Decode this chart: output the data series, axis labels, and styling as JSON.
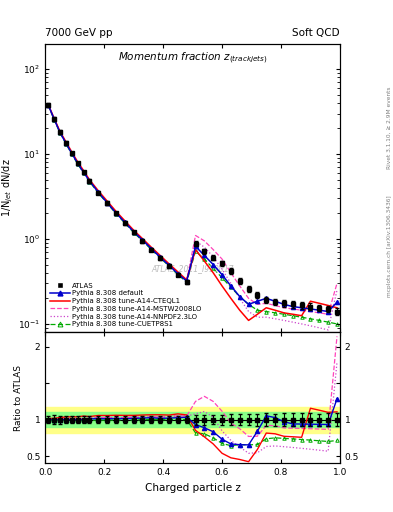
{
  "title_main": "Momentum fraction z$_{(track jets)}$",
  "header_left": "7000 GeV pp",
  "header_right": "Soft QCD",
  "ylabel_main": "1/N$_{jet}$ dN/dz",
  "ylabel_ratio": "Ratio to ATLAS",
  "xlabel": "Charged particle z",
  "watermark": "ATLAS_2011_I919017",
  "right_label": "mcplots.cern.ch [arXiv:1306.3436]",
  "right_label2": "Rivet 3.1.10, ≥ 2.9M events",
  "z_vals": [
    0.01,
    0.03,
    0.05,
    0.07,
    0.09,
    0.11,
    0.13,
    0.15,
    0.18,
    0.21,
    0.24,
    0.27,
    0.3,
    0.33,
    0.36,
    0.39,
    0.42,
    0.45,
    0.48,
    0.51,
    0.54,
    0.57,
    0.6,
    0.63,
    0.66,
    0.69,
    0.72,
    0.75,
    0.78,
    0.81,
    0.84,
    0.87,
    0.9,
    0.93,
    0.96,
    0.99
  ],
  "atlas_y": [
    38,
    26,
    18,
    13.5,
    10.2,
    7.8,
    6.1,
    4.8,
    3.5,
    2.65,
    2.0,
    1.55,
    1.2,
    0.95,
    0.75,
    0.6,
    0.48,
    0.38,
    0.31,
    0.88,
    0.72,
    0.6,
    0.52,
    0.42,
    0.32,
    0.26,
    0.22,
    0.19,
    0.18,
    0.175,
    0.17,
    0.165,
    0.16,
    0.155,
    0.15,
    0.14
  ],
  "atlas_yerr": [
    2,
    1.5,
    1.0,
    0.7,
    0.5,
    0.35,
    0.28,
    0.22,
    0.16,
    0.12,
    0.09,
    0.07,
    0.055,
    0.044,
    0.035,
    0.028,
    0.022,
    0.018,
    0.015,
    0.06,
    0.05,
    0.04,
    0.035,
    0.03,
    0.025,
    0.02,
    0.018,
    0.016,
    0.015,
    0.015,
    0.015,
    0.014,
    0.014,
    0.013,
    0.013,
    0.012
  ],
  "pythia_default_y": [
    38,
    26,
    18,
    13.5,
    10.2,
    7.8,
    6.1,
    4.85,
    3.55,
    2.68,
    2.03,
    1.57,
    1.22,
    0.97,
    0.77,
    0.61,
    0.49,
    0.39,
    0.32,
    0.82,
    0.64,
    0.5,
    0.38,
    0.28,
    0.21,
    0.17,
    0.185,
    0.2,
    0.185,
    0.17,
    0.16,
    0.155,
    0.15,
    0.145,
    0.14,
    0.18
  ],
  "pythia_cteq_y": [
    38.5,
    26.5,
    18.5,
    14,
    10.6,
    8.1,
    6.4,
    5.0,
    3.7,
    2.8,
    2.12,
    1.64,
    1.27,
    1.01,
    0.8,
    0.64,
    0.51,
    0.41,
    0.33,
    0.75,
    0.55,
    0.4,
    0.28,
    0.2,
    0.145,
    0.11,
    0.13,
    0.155,
    0.145,
    0.135,
    0.13,
    0.125,
    0.185,
    0.175,
    0.165,
    0.155
  ],
  "pythia_mstw_y": [
    38,
    26,
    18.2,
    13.7,
    10.3,
    7.9,
    6.2,
    4.9,
    3.6,
    2.72,
    2.06,
    1.59,
    1.24,
    0.98,
    0.78,
    0.62,
    0.5,
    0.4,
    0.325,
    1.1,
    0.95,
    0.75,
    0.58,
    0.4,
    0.28,
    0.2,
    0.17,
    0.175,
    0.165,
    0.155,
    0.15,
    0.145,
    0.14,
    0.135,
    0.13,
    0.3
  ],
  "pythia_nnpdf_y": [
    38,
    26,
    18.2,
    13.7,
    10.3,
    7.9,
    6.2,
    4.9,
    3.6,
    2.72,
    2.06,
    1.59,
    1.24,
    0.98,
    0.78,
    0.62,
    0.5,
    0.4,
    0.325,
    0.95,
    0.8,
    0.62,
    0.44,
    0.3,
    0.2,
    0.14,
    0.12,
    0.12,
    0.115,
    0.11,
    0.105,
    0.1,
    0.095,
    0.09,
    0.085,
    0.25
  ],
  "pythia_cuetp_y": [
    37.5,
    25.5,
    17.8,
    13.3,
    10.0,
    7.65,
    6.0,
    4.75,
    3.48,
    2.63,
    1.99,
    1.54,
    1.19,
    0.95,
    0.75,
    0.6,
    0.48,
    0.38,
    0.31,
    0.72,
    0.58,
    0.45,
    0.35,
    0.27,
    0.21,
    0.17,
    0.145,
    0.14,
    0.135,
    0.13,
    0.125,
    0.12,
    0.115,
    0.11,
    0.105,
    0.1
  ],
  "color_atlas": "#000000",
  "color_default": "#0000cc",
  "color_cteq": "#ff0000",
  "color_mstw": "#ff44bb",
  "color_nnpdf": "#cc44cc",
  "color_cuetp": "#00aa00",
  "band_yellow": [
    0.82,
    1.18
  ],
  "band_green": [
    0.9,
    1.1
  ],
  "xlim": [
    0.0,
    1.0
  ],
  "ylim_main": [
    0.08,
    200
  ],
  "ylim_ratio": [
    0.4,
    2.2
  ]
}
